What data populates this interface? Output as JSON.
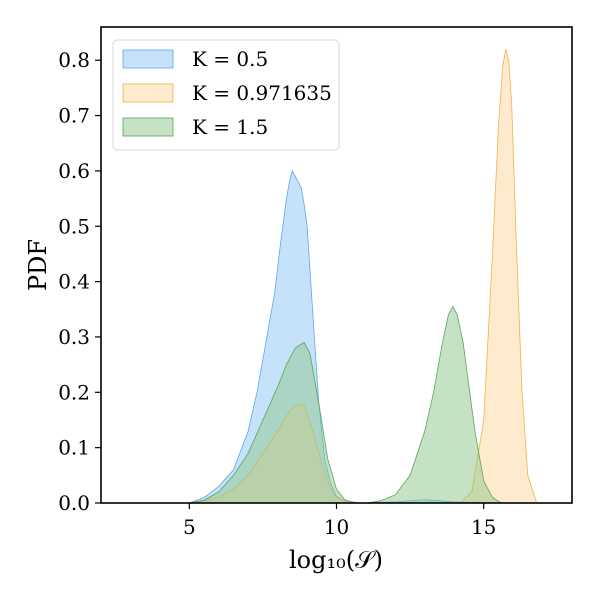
{
  "chart_data": {
    "type": "area",
    "title": "",
    "xlabel": "log₁₀(𝒮)",
    "ylabel": "PDF",
    "xlim": [
      2.0,
      18.0
    ],
    "ylim": [
      0.0,
      0.86
    ],
    "xticks": [
      5,
      10,
      15
    ],
    "xtick_labels": [
      "5",
      "10",
      "15"
    ],
    "yticks": [
      0.0,
      0.1,
      0.2,
      0.3,
      0.4,
      0.5,
      0.6,
      0.7,
      0.8
    ],
    "ytick_labels": [
      "0.0",
      "0.1",
      "0.2",
      "0.3",
      "0.4",
      "0.5",
      "0.6",
      "0.7",
      "0.8"
    ],
    "grid": false,
    "legend_position": "top-left",
    "series": [
      {
        "name": "K = 0.5",
        "fill": "#8ec6f7",
        "stroke": "#5aa8ef",
        "x": [
          5.0,
          5.5,
          6.0,
          6.5,
          7.0,
          7.3,
          7.6,
          7.9,
          8.1,
          8.3,
          8.4,
          8.5,
          8.6,
          8.7,
          8.8,
          8.9,
          9.0,
          9.2,
          9.4,
          9.6,
          9.8,
          10.0,
          10.3,
          10.6,
          11.0,
          12.0,
          13.0,
          14.0,
          16.0
        ],
        "y": [
          0.0,
          0.01,
          0.03,
          0.06,
          0.13,
          0.2,
          0.29,
          0.38,
          0.47,
          0.55,
          0.58,
          0.6,
          0.59,
          0.58,
          0.57,
          0.54,
          0.5,
          0.34,
          0.18,
          0.08,
          0.035,
          0.012,
          0.003,
          0.001,
          0.0,
          0.002,
          0.006,
          0.002,
          0.0
        ]
      },
      {
        "name": "K = 0.971635",
        "fill": "#fdd59b",
        "stroke": "#f5b04c",
        "x": [
          5.0,
          5.5,
          6.0,
          6.5,
          7.0,
          7.5,
          8.0,
          8.4,
          8.7,
          8.9,
          9.2,
          9.5,
          9.8,
          10.0,
          10.5,
          11.0,
          14.2,
          14.6,
          15.0,
          15.3,
          15.5,
          15.65,
          15.75,
          15.85,
          15.95,
          16.1,
          16.3,
          16.5,
          16.8
        ],
        "y": [
          0.0,
          0.004,
          0.01,
          0.025,
          0.05,
          0.09,
          0.13,
          0.165,
          0.18,
          0.175,
          0.13,
          0.07,
          0.025,
          0.01,
          0.002,
          0.0,
          0.0,
          0.02,
          0.15,
          0.45,
          0.68,
          0.79,
          0.82,
          0.8,
          0.72,
          0.48,
          0.2,
          0.05,
          0.0
        ]
      },
      {
        "name": "K = 1.5",
        "fill": "#8dc68b",
        "stroke": "#5aa55a",
        "x": [
          5.0,
          5.5,
          6.0,
          6.5,
          7.0,
          7.5,
          8.0,
          8.3,
          8.6,
          8.9,
          9.1,
          9.4,
          9.7,
          10.0,
          10.3,
          10.7,
          11.0,
          11.5,
          12.0,
          12.5,
          13.0,
          13.3,
          13.6,
          13.8,
          13.95,
          14.1,
          14.3,
          14.5,
          14.7,
          15.0,
          15.3,
          15.6
        ],
        "y": [
          0.0,
          0.005,
          0.02,
          0.05,
          0.09,
          0.15,
          0.21,
          0.25,
          0.28,
          0.29,
          0.27,
          0.18,
          0.08,
          0.025,
          0.005,
          0.0,
          0.0,
          0.004,
          0.015,
          0.05,
          0.13,
          0.2,
          0.29,
          0.34,
          0.355,
          0.34,
          0.29,
          0.21,
          0.13,
          0.04,
          0.01,
          0.0
        ]
      }
    ]
  }
}
